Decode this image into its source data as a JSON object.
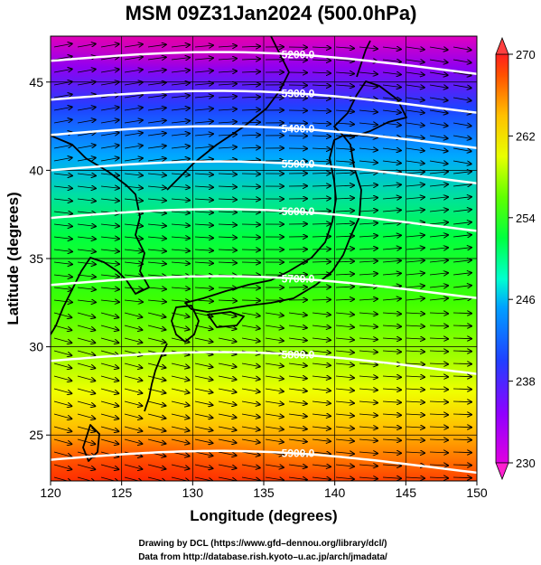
{
  "title": "MSM 09Z31Jan2024 (500.0hPa)",
  "xlabel": "Longitude (degrees)",
  "ylabel": "Latitude  (degrees)",
  "x_ticks": [
    "120",
    "125",
    "130",
    "135",
    "140",
    "145",
    "150"
  ],
  "y_ticks": [
    "25",
    "30",
    "35",
    "40",
    "45"
  ],
  "colorbar": {
    "ticks": [
      "270",
      "262",
      "254",
      "246",
      "238",
      "230"
    ],
    "min": 230,
    "max": 270,
    "colors": [
      "#e000e0",
      "#9000ff",
      "#2040ff",
      "#00a0ff",
      "#00ffd0",
      "#00ff40",
      "#60ff00",
      "#e8ff00",
      "#ffc000",
      "#ff5000",
      "#ff2020"
    ]
  },
  "contours": [
    {
      "label": "5200.0",
      "lat": 46.2
    },
    {
      "label": "5300.0",
      "lat": 44.0
    },
    {
      "label": "5400.0",
      "lat": 42.0
    },
    {
      "label": "5500.0",
      "lat": 40.0
    },
    {
      "label": "5600.0",
      "lat": 37.3
    },
    {
      "label": "5700.0",
      "lat": 33.5
    },
    {
      "label": "5800.0",
      "lat": 29.2
    },
    {
      "label": "5900.0",
      "lat": 23.6
    }
  ],
  "credits": {
    "line1": "Drawing by DCL (https://www.gfd–dennou.org/library/dcl/)",
    "line2": "Data from http://database.rish.kyoto–u.ac.jp/arch/jmadata/"
  }
}
